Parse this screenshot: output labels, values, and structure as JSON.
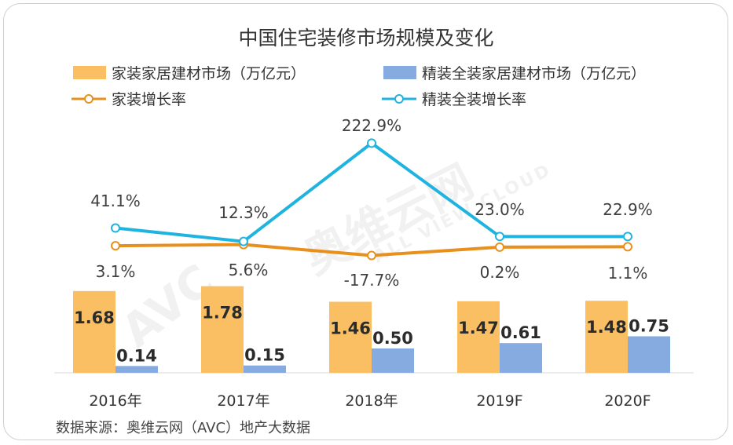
{
  "chart_data": {
    "type": "bar",
    "title": "中国住宅装修市场规模及变化",
    "categories": [
      "2016年",
      "2017年",
      "2018年",
      "2019F",
      "2020F"
    ],
    "series": [
      {
        "name": "家装家居建材市场（万亿元）",
        "kind": "bar",
        "color": "#FBBF63",
        "values": [
          1.68,
          1.78,
          1.46,
          1.47,
          1.48
        ],
        "labels": [
          "1.68",
          "1.78",
          "1.46",
          "1.47",
          "1.48"
        ]
      },
      {
        "name": "精装全装家居建材市场（万亿元）",
        "kind": "bar",
        "color": "#86ABE0",
        "values": [
          0.14,
          0.15,
          0.5,
          0.61,
          0.75
        ],
        "labels": [
          "0.14",
          "0.15",
          "0.50",
          "0.61",
          "0.75"
        ]
      },
      {
        "name": "家装增长率",
        "kind": "line",
        "color": "#E9901C",
        "values": [
          3.1,
          5.6,
          -17.7,
          0.2,
          1.1
        ],
        "labels": [
          "3.1%",
          "5.6%",
          "-17.7%",
          "0.2%",
          "1.1%"
        ]
      },
      {
        "name": "精装全装增长率",
        "kind": "line",
        "color": "#1FB4E0",
        "values": [
          41.1,
          12.3,
          222.9,
          23.0,
          22.9
        ],
        "labels": [
          "41.1%",
          "12.3%",
          "222.9%",
          "23.0%",
          "22.9%"
        ]
      }
    ],
    "bar_axis_range": [
      0,
      2.6
    ],
    "line_axis_range": [
      -150,
      300
    ],
    "grid": false,
    "legend_position": "top"
  },
  "source": "数据来源：奥维云网（AVC）地产大数据",
  "watermark": {
    "brand": "AVC",
    "cn": "奥维云网",
    "en": "ALL VIEW CLOUD"
  }
}
